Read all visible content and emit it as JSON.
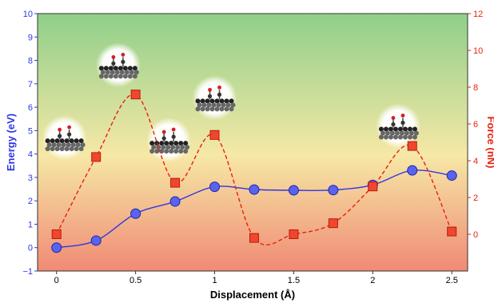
{
  "chart_data": {
    "type": "line",
    "title": "",
    "xlabel": "Displacement (Å)",
    "ylabel_left": "Energy (eV)",
    "ylabel_right": "Force (nN)",
    "xlim": [
      -0.12,
      2.6
    ],
    "ylim_left": [
      -1,
      10
    ],
    "ylim_right": [
      -2,
      12
    ],
    "x_ticks": [
      "0",
      "0.5",
      "1",
      "1.5",
      "2",
      "2.5"
    ],
    "y_left_ticks": [
      "−1",
      "0",
      "1",
      "2",
      "3",
      "4",
      "5",
      "6",
      "7",
      "8",
      "9",
      "10"
    ],
    "y_right_ticks": [
      "0",
      "2",
      "4",
      "6",
      "8",
      "10",
      "12"
    ],
    "background_gradient": {
      "top": "#8fcf8a",
      "middle": "#f6e8a6",
      "bottom": "#f08a74"
    },
    "series": [
      {
        "name": "",
        "axis": "left",
        "color": "#2f37e0",
        "marker": "circle",
        "line_style": "solid",
        "x": [
          0,
          0.25,
          0.5,
          0.75,
          1.0,
          1.25,
          1.5,
          1.75,
          2.0,
          2.25,
          2.5
        ],
        "values": [
          0.0,
          0.3,
          1.45,
          1.97,
          2.6,
          2.48,
          2.45,
          2.46,
          2.68,
          3.3,
          3.08
        ]
      },
      {
        "name": "",
        "axis": "right",
        "color": "#e8210f",
        "marker": "square",
        "line_style": "dashed",
        "x": [
          0,
          0.25,
          0.5,
          0.75,
          1.0,
          1.25,
          1.5,
          1.75,
          2.0,
          2.25,
          2.5
        ],
        "values": [
          0.0,
          4.2,
          7.6,
          2.8,
          5.4,
          -0.2,
          0.0,
          0.6,
          2.6,
          4.8,
          0.15
        ]
      }
    ],
    "insets": [
      {
        "name": "structure-0",
        "x": 0.05,
        "y_left": 4.7
      },
      {
        "name": "structure-1",
        "x": 0.39,
        "y_left": 7.8
      },
      {
        "name": "structure-2",
        "x": 0.71,
        "y_left": 4.6
      },
      {
        "name": "structure-3",
        "x": 1.0,
        "y_left": 6.4
      },
      {
        "name": "structure-4",
        "x": 2.16,
        "y_left": 5.2
      }
    ]
  }
}
